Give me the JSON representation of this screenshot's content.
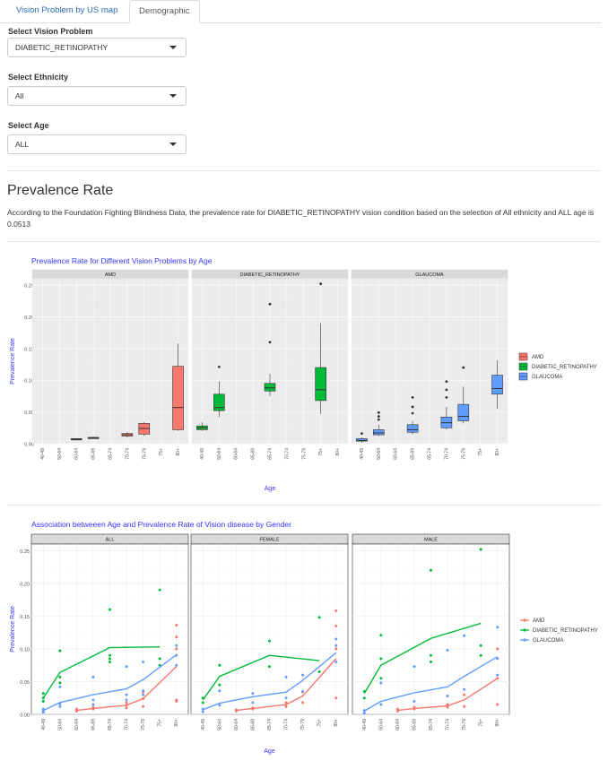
{
  "tabs": [
    {
      "label": "Vision Problem by US map",
      "active": false
    },
    {
      "label": "Demographic",
      "active": true
    }
  ],
  "controls": {
    "vision": {
      "label": "Select Vision Problem",
      "value": "DIABETIC_RETINOPATHY"
    },
    "ethnicity": {
      "label": "Select Ethnicity",
      "value": "All"
    },
    "age": {
      "label": "Select Age",
      "value": "ALL"
    }
  },
  "section": {
    "title": "Prevalence Rate",
    "description": "According to the Foundation Fighting Blindness Data, the prevalence rate for DIABETIC_RETINOPATHY vision condition based on the selection of All ethnicity and ALL age is 0.0513"
  },
  "colors": {
    "AMD": "#F8766D",
    "DIABETIC_RETINOPATHY": "#00BA38",
    "GLAUCOMA": "#619CFF",
    "title": "#3333ff"
  },
  "chart_data": [
    {
      "type": "box",
      "title": "Prevalence Rate for Different Vision Problems by Age",
      "xlabel": "Age",
      "ylabel": "Prevalence Rate",
      "ylim": [
        0,
        0.26
      ],
      "yticks": [
        0.0,
        0.05,
        0.1,
        0.15,
        0.2,
        0.25
      ],
      "ytick_labels": [
        "0.00",
        "0.05",
        "0.10",
        "0.15",
        "0.20",
        "0.25"
      ],
      "categories": [
        "40-49",
        "50-64",
        "60-64",
        "65-69",
        "65-74",
        "70-74",
        "75-79",
        "75+",
        "80+"
      ],
      "legend": [
        "AMD",
        "DIABETIC_RETINOPATHY",
        "GLAUCOMA"
      ],
      "legend_position": "right",
      "panels": [
        {
          "name": "AMD",
          "boxes": [
            {
              "cat": "60-64",
              "min": 0.005,
              "q1": 0.006,
              "median": 0.007,
              "q3": 0.008,
              "max": 0.008,
              "outliers": []
            },
            {
              "cat": "65-69",
              "min": 0.008,
              "q1": 0.009,
              "median": 0.009,
              "q3": 0.01,
              "max": 0.011,
              "outliers": []
            },
            {
              "cat": "70-74",
              "min": 0.01,
              "q1": 0.012,
              "median": 0.014,
              "q3": 0.016,
              "max": 0.018,
              "outliers": []
            },
            {
              "cat": "75-79",
              "min": 0.012,
              "q1": 0.015,
              "median": 0.024,
              "q3": 0.032,
              "max": 0.034,
              "outliers": []
            },
            {
              "cat": "80+",
              "min": 0.02,
              "q1": 0.022,
              "median": 0.057,
              "q3": 0.122,
              "max": 0.158,
              "outliers": []
            }
          ]
        },
        {
          "name": "DIABETIC_RETINOPATHY",
          "boxes": [
            {
              "cat": "40-49",
              "min": 0.02,
              "q1": 0.022,
              "median": 0.025,
              "q3": 0.028,
              "max": 0.034,
              "outliers": []
            },
            {
              "cat": "50-64",
              "min": 0.042,
              "q1": 0.052,
              "median": 0.057,
              "q3": 0.078,
              "max": 0.098,
              "outliers": [
                0.121
              ]
            },
            {
              "cat": "65-74",
              "min": 0.075,
              "q1": 0.083,
              "median": 0.088,
              "q3": 0.095,
              "max": 0.11,
              "outliers": [
                0.16,
                0.22
              ]
            },
            {
              "cat": "75+",
              "min": 0.047,
              "q1": 0.068,
              "median": 0.085,
              "q3": 0.12,
              "max": 0.19,
              "outliers": [
                0.252
              ]
            }
          ]
        },
        {
          "name": "GLAUCOMA",
          "boxes": [
            {
              "cat": "40-49",
              "min": 0.002,
              "q1": 0.004,
              "median": 0.005,
              "q3": 0.008,
              "max": 0.01,
              "outliers": [
                0.016
              ]
            },
            {
              "cat": "50-64",
              "min": 0.012,
              "q1": 0.014,
              "median": 0.017,
              "q3": 0.022,
              "max": 0.03,
              "outliers": [
                0.038,
                0.043,
                0.049
              ]
            },
            {
              "cat": "65-69",
              "min": 0.015,
              "q1": 0.018,
              "median": 0.022,
              "q3": 0.03,
              "max": 0.036,
              "outliers": [
                0.048,
                0.058,
                0.073
              ]
            },
            {
              "cat": "70-74",
              "min": 0.022,
              "q1": 0.025,
              "median": 0.033,
              "q3": 0.042,
              "max": 0.058,
              "outliers": [
                0.073,
                0.085,
                0.098
              ]
            },
            {
              "cat": "75-79",
              "min": 0.032,
              "q1": 0.036,
              "median": 0.043,
              "q3": 0.062,
              "max": 0.09,
              "outliers": [
                0.12
              ]
            },
            {
              "cat": "80+",
              "min": 0.055,
              "q1": 0.078,
              "median": 0.087,
              "q3": 0.108,
              "max": 0.132,
              "outliers": []
            }
          ]
        }
      ]
    },
    {
      "type": "scatter+line",
      "title": "Association betweeen Age and Prevalence Rate of Vision disease by Gender",
      "xlabel": "Age",
      "ylabel": "Prevalence Rate",
      "ylim": [
        0,
        0.26
      ],
      "yticks": [
        0.0,
        0.05,
        0.1,
        0.15,
        0.2,
        0.25
      ],
      "ytick_labels": [
        "0.00",
        "0.05",
        "0.10",
        "0.15",
        "0.20",
        "0.25"
      ],
      "categories": [
        "40-49",
        "50-64",
        "60-64",
        "65-69",
        "65-74",
        "70-74",
        "75-79",
        "75+",
        "80+"
      ],
      "legend": [
        "AMD",
        "DIABETIC_RETINOPATHY",
        "GLAUCOMA"
      ],
      "legend_position": "right",
      "panels": [
        {
          "name": "ALL",
          "lines": [
            {
              "series": "AMD",
              "x": [
                "60-64",
                "65-69",
                "70-74",
                "75-79",
                "80+"
              ],
              "y": [
                0.006,
                0.009,
                0.014,
                0.024,
                0.073
              ]
            },
            {
              "series": "DIABETIC_RETINOPATHY",
              "x": [
                "40-49",
                "50-64",
                "65-74",
                "75+"
              ],
              "y": [
                0.025,
                0.064,
                0.102,
                0.103
              ]
            },
            {
              "series": "GLAUCOMA",
              "x": [
                "40-49",
                "50-64",
                "65-69",
                "70-74",
                "75-79",
                "80+"
              ],
              "y": [
                0.006,
                0.018,
                0.03,
                0.039,
                0.053,
                0.091
              ]
            }
          ],
          "points": [
            {
              "series": "AMD",
              "x": "60-64",
              "y": [
                0.005,
                0.006,
                0.008
              ]
            },
            {
              "series": "AMD",
              "x": "65-69",
              "y": [
                0.008,
                0.009,
                0.011
              ]
            },
            {
              "series": "AMD",
              "x": "70-74",
              "y": [
                0.01,
                0.014,
                0.018
              ]
            },
            {
              "series": "AMD",
              "x": "75-79",
              "y": [
                0.012,
                0.024,
                0.034
              ]
            },
            {
              "series": "AMD",
              "x": "80+",
              "y": [
                0.02,
                0.022,
                0.1,
                0.118,
                0.136
              ]
            },
            {
              "series": "DIABETIC_RETINOPATHY",
              "x": "40-49",
              "y": [
                0.02,
                0.025,
                0.032
              ]
            },
            {
              "series": "DIABETIC_RETINOPATHY",
              "x": "50-64",
              "y": [
                0.048,
                0.057,
                0.097
              ]
            },
            {
              "series": "DIABETIC_RETINOPATHY",
              "x": "65-74",
              "y": [
                0.08,
                0.085,
                0.09,
                0.16
              ]
            },
            {
              "series": "DIABETIC_RETINOPATHY",
              "x": "75+",
              "y": [
                0.075,
                0.085,
                0.19
              ]
            },
            {
              "series": "GLAUCOMA",
              "x": "40-49",
              "y": [
                0.003,
                0.005,
                0.008
              ]
            },
            {
              "series": "GLAUCOMA",
              "x": "50-64",
              "y": [
                0.012,
                0.016,
                0.042
              ]
            },
            {
              "series": "GLAUCOMA",
              "x": "65-69",
              "y": [
                0.015,
                0.022,
                0.057
              ]
            },
            {
              "series": "GLAUCOMA",
              "x": "70-74",
              "y": [
                0.022,
                0.03,
                0.073
              ]
            },
            {
              "series": "GLAUCOMA",
              "x": "75-79",
              "y": [
                0.03,
                0.036,
                0.08
              ]
            },
            {
              "series": "GLAUCOMA",
              "x": "80+",
              "y": [
                0.075,
                0.09,
                0.105
              ]
            }
          ]
        },
        {
          "name": "FEMALE",
          "lines": [
            {
              "series": "AMD",
              "x": [
                "60-64",
                "65-69",
                "70-74",
                "75-79",
                "80+"
              ],
              "y": [
                0.006,
                0.009,
                0.015,
                0.028,
                0.085
              ]
            },
            {
              "series": "DIABETIC_RETINOPATHY",
              "x": [
                "40-49",
                "50-64",
                "65-74",
                "75+"
              ],
              "y": [
                0.022,
                0.058,
                0.09,
                0.082
              ]
            },
            {
              "series": "GLAUCOMA",
              "x": [
                "40-49",
                "50-64",
                "65-69",
                "70-74",
                "75-79",
                "80+"
              ],
              "y": [
                0.007,
                0.017,
                0.027,
                0.034,
                0.052,
                0.094
              ]
            }
          ],
          "points": [
            {
              "series": "AMD",
              "x": "60-64",
              "y": [
                0.005,
                0.007
              ]
            },
            {
              "series": "AMD",
              "x": "65-69",
              "y": [
                0.008,
                0.01
              ]
            },
            {
              "series": "AMD",
              "x": "70-74",
              "y": [
                0.012,
                0.018
              ]
            },
            {
              "series": "AMD",
              "x": "75-79",
              "y": [
                0.018,
                0.034
              ]
            },
            {
              "series": "AMD",
              "x": "80+",
              "y": [
                0.025,
                0.1,
                0.135,
                0.158
              ]
            },
            {
              "series": "DIABETIC_RETINOPATHY",
              "x": "40-49",
              "y": [
                0.018,
                0.025
              ]
            },
            {
              "series": "DIABETIC_RETINOPATHY",
              "x": "50-64",
              "y": [
                0.045,
                0.075
              ]
            },
            {
              "series": "DIABETIC_RETINOPATHY",
              "x": "65-74",
              "y": [
                0.073,
                0.112
              ]
            },
            {
              "series": "DIABETIC_RETINOPATHY",
              "x": "75+",
              "y": [
                0.065,
                0.148
              ]
            },
            {
              "series": "GLAUCOMA",
              "x": "40-49",
              "y": [
                0.004,
                0.008
              ]
            },
            {
              "series": "GLAUCOMA",
              "x": "50-64",
              "y": [
                0.014,
                0.036
              ]
            },
            {
              "series": "GLAUCOMA",
              "x": "65-69",
              "y": [
                0.018,
                0.032
              ]
            },
            {
              "series": "GLAUCOMA",
              "x": "70-74",
              "y": [
                0.025,
                0.057
              ]
            },
            {
              "series": "GLAUCOMA",
              "x": "75-79",
              "y": [
                0.035,
                0.06
              ]
            },
            {
              "series": "GLAUCOMA",
              "x": "80+",
              "y": [
                0.08,
                0.105,
                0.115
              ]
            }
          ]
        },
        {
          "name": "MALE",
          "lines": [
            {
              "series": "AMD",
              "x": [
                "60-64",
                "65-69",
                "70-74",
                "75-79",
                "80+"
              ],
              "y": [
                0.006,
                0.009,
                0.013,
                0.022,
                0.055
              ]
            },
            {
              "series": "DIABETIC_RETINOPATHY",
              "x": [
                "40-49",
                "50-64",
                "65-74",
                "75+"
              ],
              "y": [
                0.032,
                0.075,
                0.116,
                0.139
              ]
            },
            {
              "series": "GLAUCOMA",
              "x": [
                "40-49",
                "50-64",
                "65-69",
                "70-74",
                "75-79",
                "80+"
              ],
              "y": [
                0.005,
                0.02,
                0.033,
                0.042,
                0.058,
                0.088
              ]
            }
          ],
          "points": [
            {
              "series": "AMD",
              "x": "60-64",
              "y": [
                0.005,
                0.008
              ]
            },
            {
              "series": "AMD",
              "x": "65-69",
              "y": [
                0.008,
                0.011
              ]
            },
            {
              "series": "AMD",
              "x": "70-74",
              "y": [
                0.011,
                0.015
              ]
            },
            {
              "series": "AMD",
              "x": "75-79",
              "y": [
                0.012,
                0.03
              ]
            },
            {
              "series": "AMD",
              "x": "80+",
              "y": [
                0.015,
                0.055,
                0.1
              ]
            },
            {
              "series": "DIABETIC_RETINOPATHY",
              "x": "40-49",
              "y": [
                0.025,
                0.035
              ]
            },
            {
              "series": "DIABETIC_RETINOPATHY",
              "x": "50-64",
              "y": [
                0.055,
                0.085,
                0.121
              ]
            },
            {
              "series": "DIABETIC_RETINOPATHY",
              "x": "65-74",
              "y": [
                0.08,
                0.09,
                0.22
              ]
            },
            {
              "series": "DIABETIC_RETINOPATHY",
              "x": "75+",
              "y": [
                0.09,
                0.105,
                0.252
              ]
            },
            {
              "series": "GLAUCOMA",
              "x": "40-49",
              "y": [
                0.002,
                0.006
              ]
            },
            {
              "series": "GLAUCOMA",
              "x": "50-64",
              "y": [
                0.015,
                0.048
              ]
            },
            {
              "series": "GLAUCOMA",
              "x": "65-69",
              "y": [
                0.02,
                0.073
              ]
            },
            {
              "series": "GLAUCOMA",
              "x": "70-74",
              "y": [
                0.028,
                0.098
              ]
            },
            {
              "series": "GLAUCOMA",
              "x": "75-79",
              "y": [
                0.038,
                0.12
              ]
            },
            {
              "series": "GLAUCOMA",
              "x": "80+",
              "y": [
                0.06,
                0.085,
                0.133
              ]
            }
          ]
        }
      ]
    }
  ]
}
